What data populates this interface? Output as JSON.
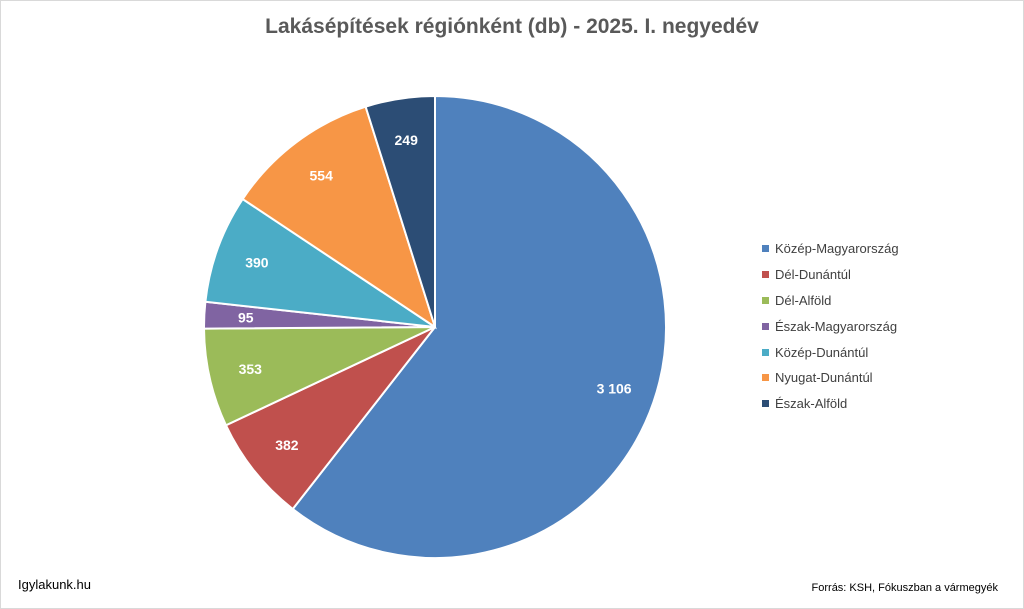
{
  "chart_data": {
    "type": "pie",
    "title": "Lakásépítések régiónként (db) - 2025. I. negyedév",
    "categories": [
      "Közép-Magyarország",
      "Dél-Dunántúl",
      "Dél-Alföld",
      "Észak-Magyarország",
      "Közép-Dunántúl",
      "Nyugat-Dunántúl",
      "Észak-Alföld"
    ],
    "values": [
      3106,
      382,
      353,
      95,
      390,
      554,
      249
    ],
    "value_labels": [
      "3 106",
      "382",
      "353",
      "95",
      "390",
      "554",
      "249"
    ],
    "colors": [
      "#4f81bd",
      "#c0504d",
      "#9bbb59",
      "#8064a2",
      "#4bacc6",
      "#f79646",
      "#2c4d75"
    ],
    "start_angle_deg": 0,
    "direction": "clockwise",
    "legend_position": "right"
  },
  "footer": {
    "site": "Igylakunk.hu",
    "source": "Forrás: KSH, Fókuszban a vármegyék"
  }
}
